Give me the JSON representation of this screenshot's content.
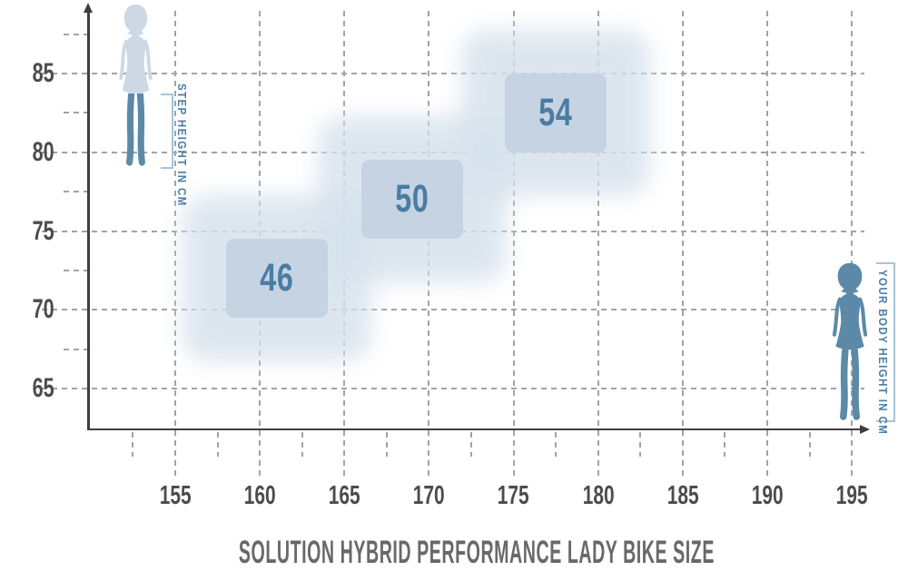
{
  "title": "SOLUTION HYBRID PERFORMANCE LADY BIKE SIZE",
  "annotations": {
    "step_height_label": "STEP HEIGHT IN CM",
    "body_height_label": "YOUR BODY HEIGHT IN CM"
  },
  "chart_data": {
    "type": "area",
    "subtype": "2d-size-range-boxes",
    "title": "SOLUTION HYBRID PERFORMANCE LADY BIKE SIZE",
    "xlabel": "YOUR BODY HEIGHT IN CM",
    "ylabel": "STEP HEIGHT IN CM",
    "xlim": [
      150,
      197.5
    ],
    "ylim": [
      62.5,
      88.75
    ],
    "x_ticks_major": [
      155,
      160,
      165,
      170,
      175,
      180,
      185,
      190,
      195
    ],
    "x_ticks_minor": [
      152.5,
      157.5,
      162.5,
      167.5,
      172.5,
      177.5,
      182.5,
      187.5,
      192.5
    ],
    "y_ticks_major": [
      65,
      70,
      75,
      80,
      85
    ],
    "y_ticks_minor": [
      67.5,
      72.5,
      77.5,
      82.5,
      87.5
    ],
    "grid": true,
    "legend": false,
    "series": [
      {
        "name": "size-46",
        "label": "46",
        "body_height_cm": [
          158,
          164
        ],
        "step_height_cm": [
          69.5,
          74.5
        ]
      },
      {
        "name": "size-50",
        "label": "50",
        "body_height_cm": [
          166,
          172
        ],
        "step_height_cm": [
          74.5,
          79.5
        ]
      },
      {
        "name": "size-54",
        "label": "54",
        "body_height_cm": [
          174.5,
          180.5
        ],
        "step_height_cm": [
          80,
          85
        ]
      }
    ]
  },
  "colors": {
    "size_box_inner": "#c5d3e2",
    "size_box_outer": "#d5e1ec",
    "accent_blue": "#4a7ca4",
    "figure_dark": "#5d89a9",
    "figure_light": "#ccd9e4",
    "bracket": "#a6c4d8",
    "axis": "#3f3f3f",
    "grid": "#a3a3a3",
    "tick_label": "#4c4c4c",
    "title_text": "#686868"
  }
}
